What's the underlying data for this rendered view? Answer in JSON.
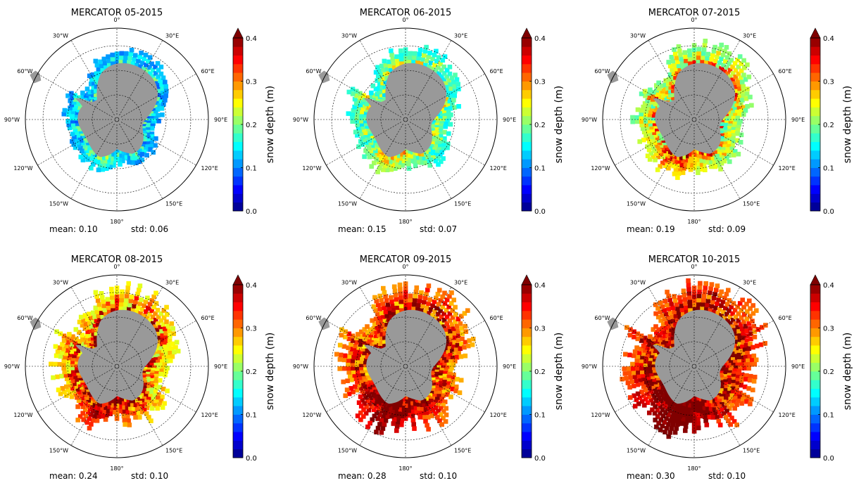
{
  "figure": {
    "meridian_labels": [
      "0°",
      "30°E",
      "60°E",
      "90°E",
      "120°E",
      "150°E",
      "180°",
      "150°W",
      "120°W",
      "90°W",
      "60°W",
      "30°W"
    ],
    "colorbar": {
      "label": "snow depth (m)",
      "ticks": [
        "0.0",
        "0.1",
        "0.2",
        "0.3",
        "0.4"
      ],
      "range": [
        0.0,
        0.4
      ],
      "colormap": [
        "#00007f",
        "#0000ff",
        "#007fff",
        "#00ffff",
        "#7fff7f",
        "#ffff00",
        "#ff7f00",
        "#ff0000",
        "#7f0000"
      ]
    },
    "land_color": "#999999",
    "panels": [
      {
        "title": "MERCATOR    05-2015",
        "mean_text": "mean: 0.10",
        "std_text": "std: 0.06",
        "mean": 0.1,
        "std": 0.06
      },
      {
        "title": "MERCATOR    06-2015",
        "mean_text": "mean: 0.15",
        "std_text": "std: 0.07",
        "mean": 0.15,
        "std": 0.07
      },
      {
        "title": "MERCATOR    07-2015",
        "mean_text": "mean: 0.19",
        "std_text": "std: 0.09",
        "mean": 0.19,
        "std": 0.09
      },
      {
        "title": "MERCATOR    08-2015",
        "mean_text": "mean: 0.24",
        "std_text": "std: 0.10",
        "mean": 0.24,
        "std": 0.1
      },
      {
        "title": "MERCATOR    09-2015",
        "mean_text": "mean: 0.28",
        "std_text": "std: 0.10",
        "mean": 0.28,
        "std": 0.1
      },
      {
        "title": "MERCATOR    10-2015",
        "mean_text": "mean: 0.30",
        "std_text": "std: 0.10",
        "mean": 0.3,
        "std": 0.1
      }
    ]
  }
}
